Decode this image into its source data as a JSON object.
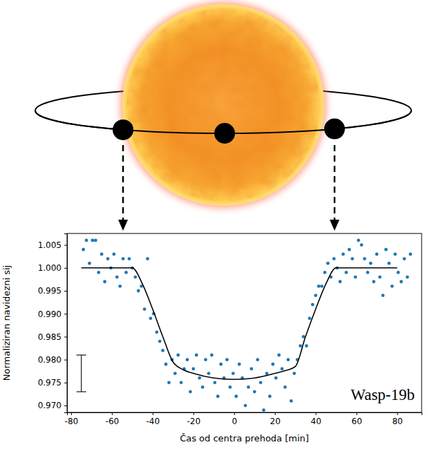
{
  "chart_data": {
    "type": "scatter",
    "x_label": "Čas od centra prehoda [min]",
    "y_label": "Normaliziran navidezni sij",
    "annotation": "Wasp-19b",
    "xlim": [
      -82,
      92
    ],
    "ylim": [
      0.9685,
      1.0075
    ],
    "xticks": [
      -80,
      -60,
      -40,
      -20,
      0,
      20,
      40,
      60,
      80
    ],
    "yticks": [
      1.005,
      {
        "value": 1.0,
        "label": "1.000"
      },
      0.995,
      {
        "value": 0.99,
        "label": "0.990"
      },
      0.985,
      {
        "value": 0.98,
        "label": "0.980"
      },
      0.975,
      {
        "value": 0.97,
        "label": "0.970"
      }
    ],
    "grid": false,
    "series": [
      {
        "type": "scatter",
        "color": "#1f77b4",
        "marker": "circle",
        "x": [
          -74,
          -72.5,
          -71,
          -69.5,
          -68,
          -66.5,
          -65,
          -63.5,
          -62,
          -60.5,
          -59,
          -57.5,
          -56,
          -54.5,
          -53,
          -51.5,
          -50,
          -48.5,
          -47,
          -45.5,
          -44,
          -42.5,
          -41,
          -39.5,
          -38,
          -36.5,
          -35,
          -33.5,
          -32,
          -30.5,
          -29,
          -27.5,
          -26,
          -24.5,
          -23,
          -21.5,
          -20,
          -18.5,
          -17,
          -15.5,
          -14,
          -12.5,
          -11,
          -9.5,
          -8,
          -6.5,
          -5,
          -3.5,
          -2,
          -0.5,
          1,
          2.5,
          4,
          5.5,
          7,
          8.5,
          10,
          11.5,
          13,
          14.5,
          16,
          17.5,
          19,
          20.5,
          22,
          23.5,
          25,
          26.5,
          28,
          29.5,
          31,
          32.5,
          34,
          35.5,
          37,
          38.5,
          40,
          41.5,
          43,
          44.5,
          46,
          47.5,
          49,
          50.5,
          52,
          53.5,
          55,
          56.5,
          58,
          59.5,
          61,
          62.5,
          64,
          65.5,
          67,
          68.5,
          70,
          71.5,
          73,
          74.5,
          76,
          77.5,
          79,
          80.5,
          82,
          83.5,
          85,
          86.5
        ],
        "values": [
          1.004,
          1.006,
          1.001,
          1.006,
          1.006,
          0.999,
          1.003,
          0.997,
          1.002,
          1.0,
          1.003,
          0.998,
          0.996,
          1.002,
          0.999,
          1.002,
          1.0,
          0.998,
          0.995,
          0.996,
          0.991,
          1.002,
          0.989,
          0.99,
          0.986,
          0.984,
          0.982,
          0.979,
          0.975,
          0.98,
          0.977,
          0.981,
          0.975,
          0.978,
          0.98,
          0.973,
          0.978,
          0.981,
          0.976,
          0.974,
          0.98,
          0.977,
          0.981,
          0.975,
          0.972,
          0.979,
          0.976,
          0.98,
          0.974,
          0.977,
          0.972,
          0.979,
          0.976,
          0.97,
          0.974,
          0.978,
          0.973,
          0.98,
          0.975,
          0.969,
          0.977,
          0.972,
          0.979,
          0.976,
          0.981,
          0.978,
          0.974,
          0.98,
          0.971,
          0.977,
          0.98,
          0.983,
          0.985,
          0.983,
          0.989,
          0.992,
          0.994,
          0.996,
          0.996,
          0.999,
          1.001,
          0.998,
          1.002,
          1.0,
          0.997,
          1.003,
          0.999,
          1.004,
          1.002,
          0.998,
          1.006,
          1.005,
          1.002,
          0.999,
          1.001,
          0.997,
          1.003,
          0.998,
          0.994,
          1.004,
          1.001,
          0.996,
          1.003,
          0.999,
          0.997,
          1.002,
          0.998,
          1.003
        ]
      },
      {
        "type": "line",
        "color": "#000000",
        "line_style": "solid",
        "x": [
          -75,
          -50,
          -45,
          -40,
          -35,
          -30,
          -25,
          -20,
          -10,
          0,
          10,
          20,
          25,
          30,
          35,
          40,
          45,
          50,
          80
        ],
        "values": [
          1.0,
          1.0,
          0.9965,
          0.991,
          0.985,
          0.9795,
          0.9778,
          0.977,
          0.976,
          0.9757,
          0.976,
          0.977,
          0.9776,
          0.9785,
          0.985,
          0.991,
          0.9965,
          1.0,
          1.0
        ]
      }
    ],
    "error_bar": {
      "x": -75,
      "y": 0.977,
      "error": 0.004
    }
  }
}
